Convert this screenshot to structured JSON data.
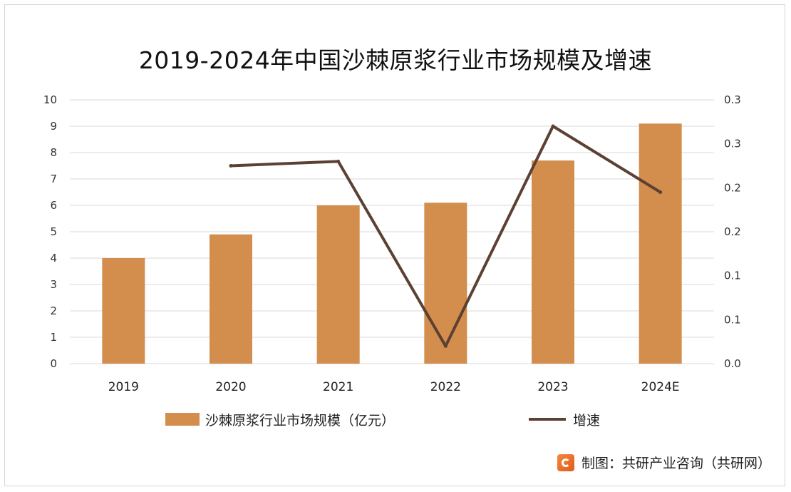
{
  "chart_data": {
    "type": "bar",
    "title": "2019-2024年中国沙棘原浆行业市场规模及增速",
    "categories": [
      "2019",
      "2020",
      "2021",
      "2022",
      "2023",
      "2024E"
    ],
    "series": [
      {
        "name": "沙棘原浆行业市场规模（亿元）",
        "type": "bar",
        "axis": "left",
        "values": [
          4.0,
          4.9,
          6.0,
          6.1,
          7.7,
          9.1
        ],
        "color": "#d38d4c"
      },
      {
        "name": "增速",
        "type": "line",
        "axis": "right",
        "values": [
          null,
          0.225,
          0.23,
          0.02,
          0.27,
          0.195
        ],
        "color": "#5c4033"
      }
    ],
    "left_axis": {
      "ylim": [
        0,
        10
      ],
      "tick_labels": [
        "0",
        "1",
        "2",
        "3",
        "4",
        "5",
        "6",
        "7",
        "8",
        "9",
        "10"
      ]
    },
    "right_axis": {
      "ylim": [
        0,
        0.3
      ],
      "tick_labels": [
        "0.0",
        "0.1",
        "0.1",
        "0.2",
        "0.2",
        "0.3",
        "0.3"
      ]
    },
    "grid": true,
    "legend": "bottom"
  },
  "source": {
    "text": "制图：共研产业咨询（共研网）"
  }
}
